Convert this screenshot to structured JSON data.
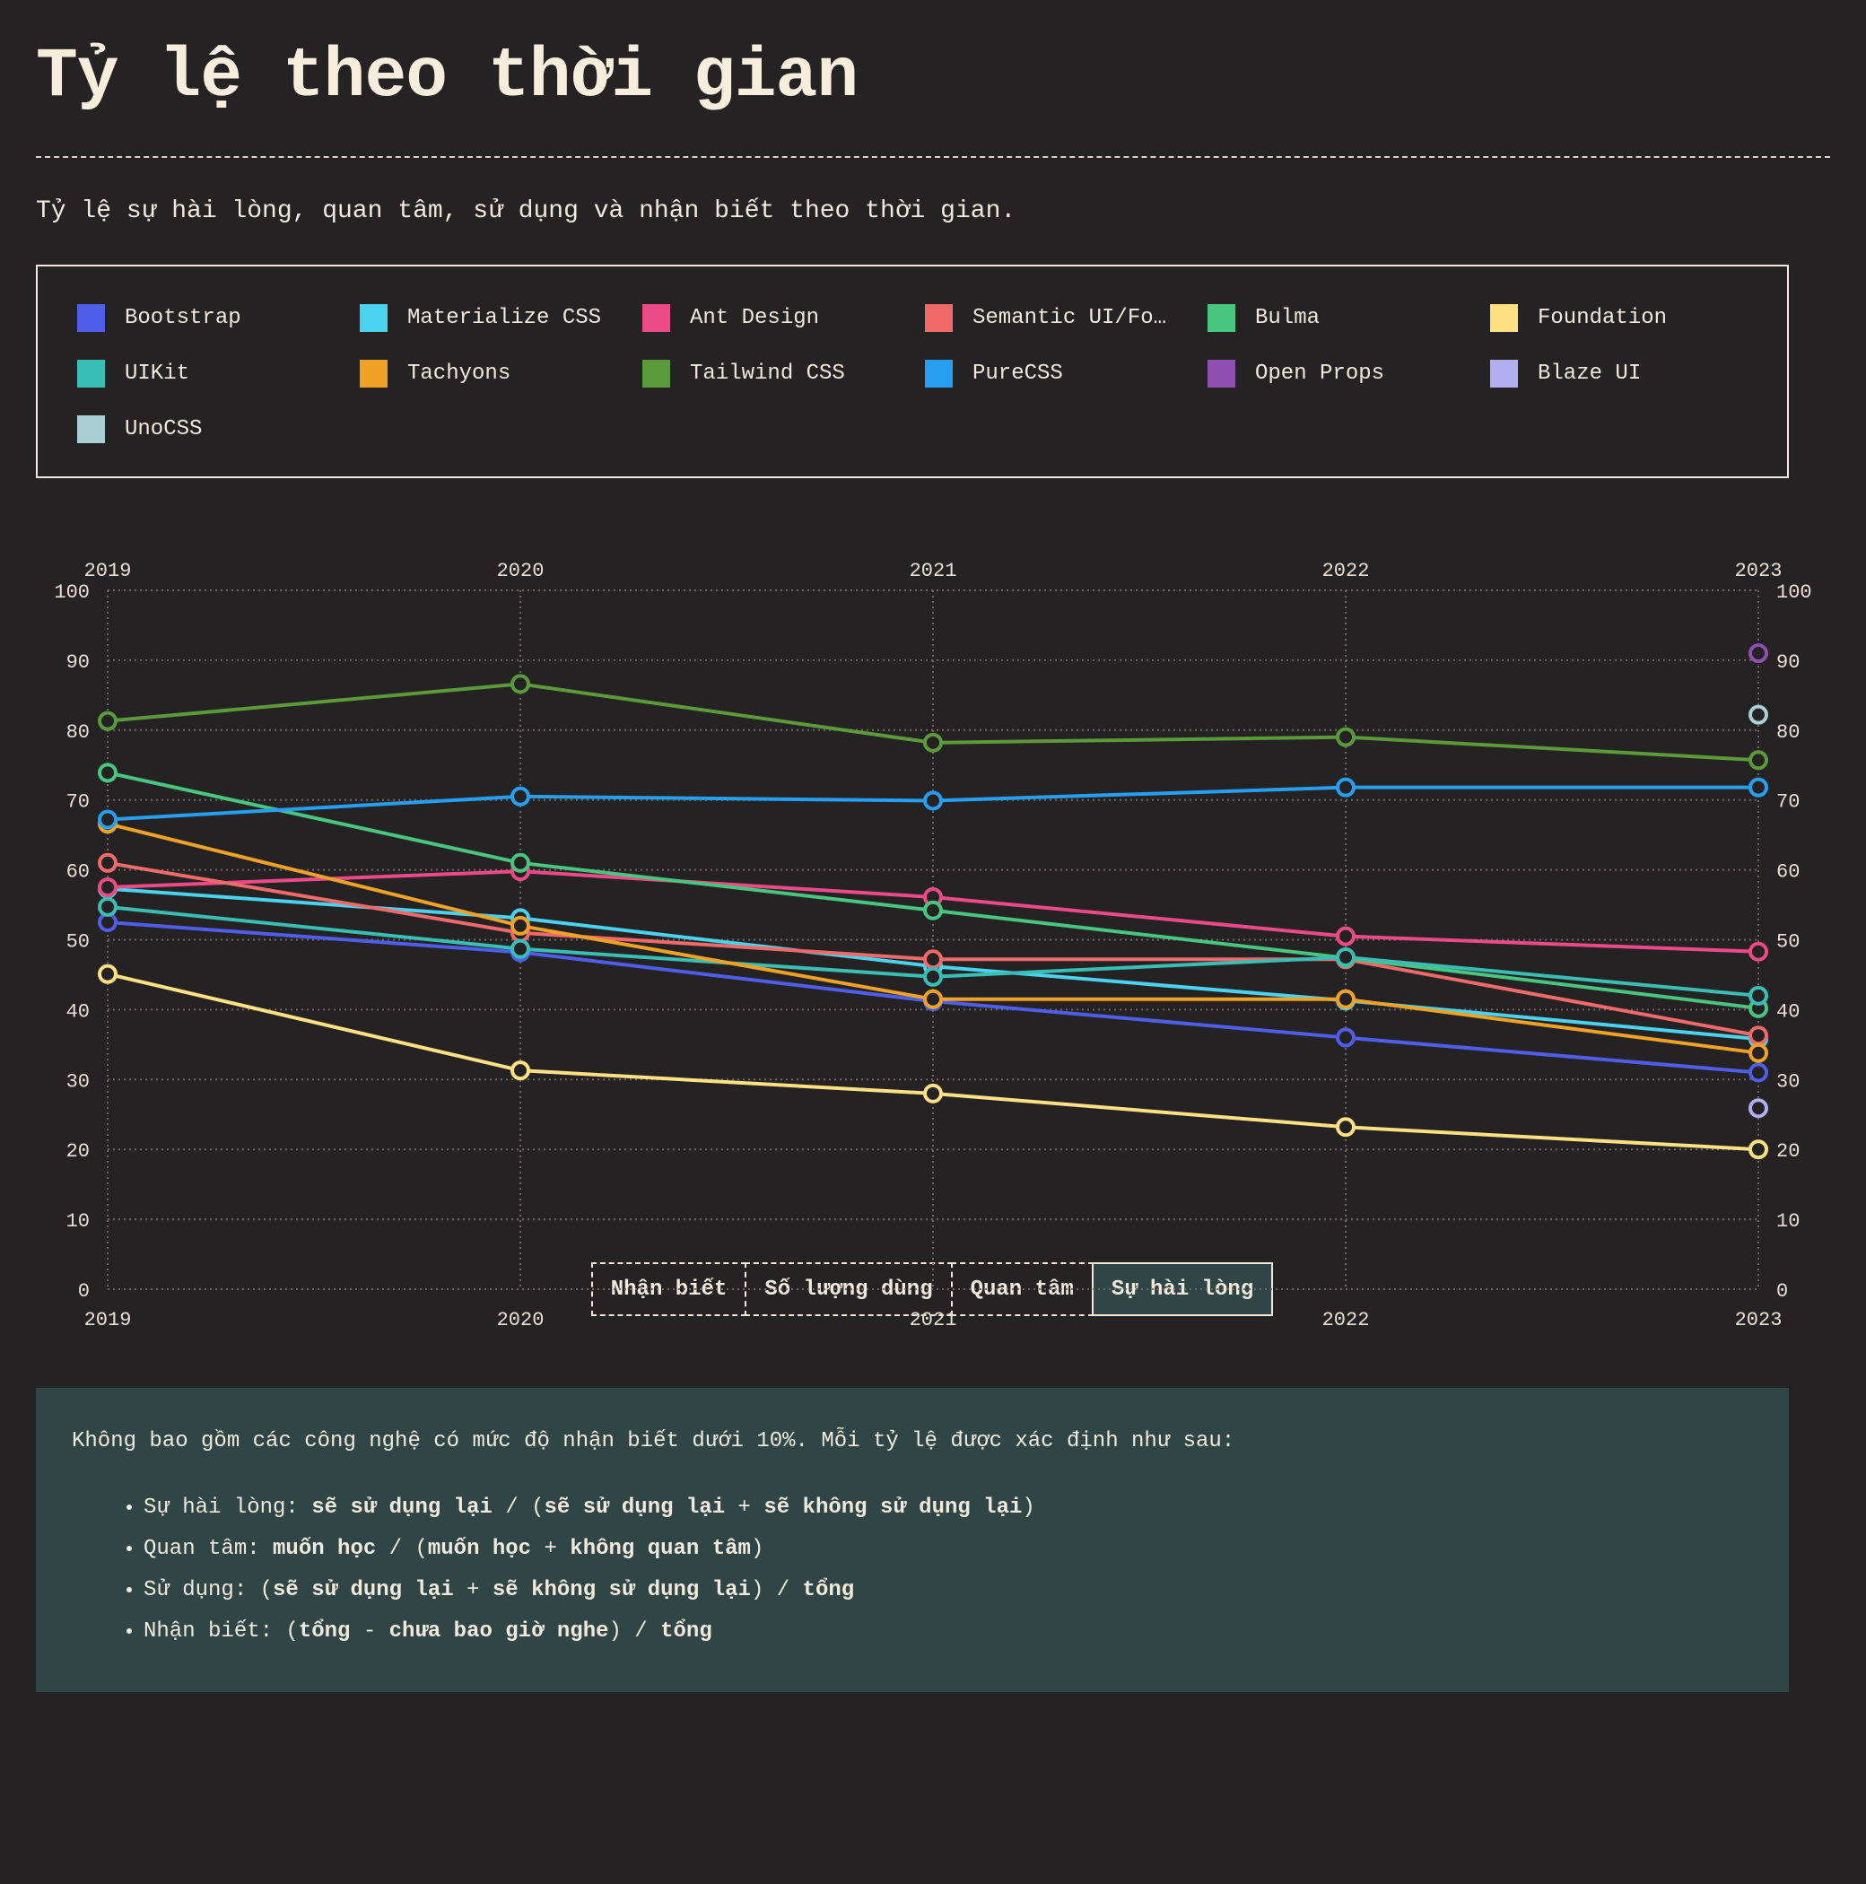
{
  "page": {
    "title": "Tỷ lệ theo thời gian",
    "description": "Tỷ lệ sự hài lòng, quan tâm, sử dụng và nhận biết theo thời gian."
  },
  "legend": [
    {
      "label": "Bootstrap",
      "color": "#4f5ee8"
    },
    {
      "label": "Materialize CSS",
      "color": "#4ad2ee"
    },
    {
      "label": "Ant Design",
      "color": "#ec4a86"
    },
    {
      "label": "Semantic UI/Fo…",
      "color": "#f06a6a"
    },
    {
      "label": "Bulma",
      "color": "#48c57e"
    },
    {
      "label": "Foundation",
      "color": "#ffe083"
    },
    {
      "label": "UIKit",
      "color": "#39bdb4"
    },
    {
      "label": "Tachyons",
      "color": "#f0a226"
    },
    {
      "label": "Tailwind CSS",
      "color": "#5a9a3a"
    },
    {
      "label": "PureCSS",
      "color": "#279ef0"
    },
    {
      "label": "Open Props",
      "color": "#8e4fb1"
    },
    {
      "label": "Blaze UI",
      "color": "#b1aef2"
    },
    {
      "label": "UnoCSS",
      "color": "#a9cfd3"
    }
  ],
  "chart_data": {
    "type": "line",
    "x": [
      "2019",
      "2020",
      "2021",
      "2022",
      "2023"
    ],
    "ylim": [
      0,
      100
    ],
    "yticks": [
      0,
      10,
      20,
      30,
      40,
      50,
      60,
      70,
      80,
      90,
      100
    ],
    "grid": true,
    "series": [
      {
        "name": "Bootstrap",
        "color": "#4f5ee8",
        "values": [
          52.5,
          48.2,
          41.2,
          36,
          31
        ]
      },
      {
        "name": "Materialize CSS",
        "color": "#4ad2ee",
        "values": [
          57.3,
          53.1,
          46.2,
          41.3,
          35.8
        ]
      },
      {
        "name": "Ant Design",
        "color": "#ec4a86",
        "values": [
          57.5,
          59.8,
          56.1,
          50.5,
          48.3
        ]
      },
      {
        "name": "Semantic UI/Fomantic UI",
        "color": "#f06a6a",
        "values": [
          61,
          51,
          47.2,
          47.2,
          36.3
        ]
      },
      {
        "name": "Bulma",
        "color": "#48c57e",
        "values": [
          73.9,
          61,
          54.2,
          47.4,
          40.2
        ]
      },
      {
        "name": "Foundation",
        "color": "#ffe083",
        "values": [
          45.1,
          31.3,
          28,
          23.2,
          20
        ]
      },
      {
        "name": "UIKit",
        "color": "#39bdb4",
        "values": [
          54.7,
          48.7,
          44.7,
          47.5,
          42
        ]
      },
      {
        "name": "Tachyons",
        "color": "#f0a226",
        "values": [
          66.6,
          52,
          41.5,
          41.5,
          33.8
        ]
      },
      {
        "name": "Tailwind CSS",
        "color": "#5a9a3a",
        "values": [
          81.3,
          86.6,
          78.2,
          79,
          75.7
        ]
      },
      {
        "name": "PureCSS",
        "color": "#279ef0",
        "values": [
          67.2,
          70.5,
          69.9,
          71.8,
          71.8
        ]
      },
      {
        "name": "Open Props",
        "color": "#8e4fb1",
        "values": [
          null,
          null,
          null,
          null,
          91
        ]
      },
      {
        "name": "Blaze UI",
        "color": "#b1aef2",
        "values": [
          null,
          null,
          null,
          null,
          25.9
        ]
      },
      {
        "name": "UnoCSS",
        "color": "#a9cfd3",
        "values": [
          null,
          null,
          null,
          null,
          82.2
        ]
      }
    ]
  },
  "tabs": [
    {
      "label": "Nhận biết",
      "active": false
    },
    {
      "label": "Số lượng dùng",
      "active": false
    },
    {
      "label": "Quan tâm",
      "active": false
    },
    {
      "label": "Sự hài lòng",
      "active": true
    }
  ],
  "notes": {
    "intro": "Không bao gồm các công nghệ có mức độ nhận biết dưới 10%. Mỗi tỷ lệ được xác định như sau:",
    "items": [
      {
        "label": "Sự hài lòng: ",
        "a": "sẽ sử dụng lại",
        "sep1": " / (",
        "b": "sẽ sử dụng lại",
        "sep2": " + ",
        "c": "sẽ không sử dụng lại",
        "sep3": ")"
      },
      {
        "label": "Quan tâm: ",
        "a": "muốn học",
        "sep1": " / (",
        "b": "muốn học",
        "sep2": " + ",
        "c": "không quan tâm",
        "sep3": ")"
      },
      {
        "label": "Sử dụng: (",
        "a": "sẽ sử dụng lại",
        "sep1": " + ",
        "b": "sẽ không sử dụng lại",
        "sep2": ") / ",
        "c": "tổng",
        "sep3": ""
      },
      {
        "label": "Nhận biết: (",
        "a": "tổng",
        "sep1": " - ",
        "b": "chưa bao giờ nghe",
        "sep2": ") / ",
        "c": "tổng",
        "sep3": ""
      }
    ]
  }
}
